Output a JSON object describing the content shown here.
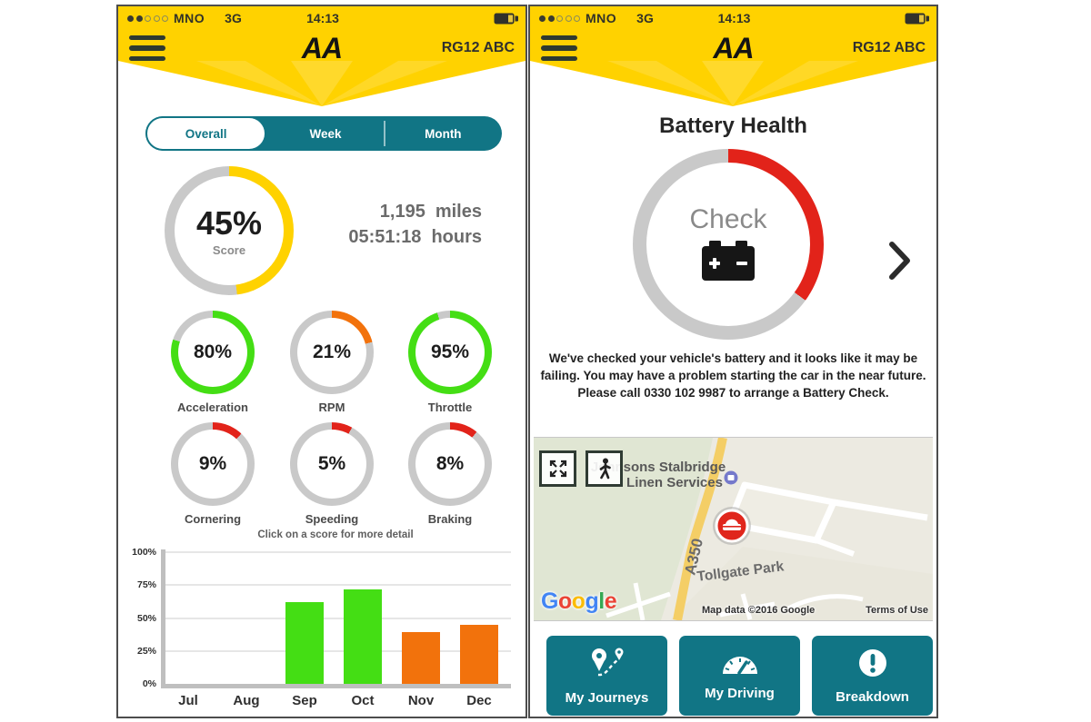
{
  "colors": {
    "yellow": "#FFD200",
    "teal": "#117585",
    "green": "#44DE14",
    "orange": "#F2720C",
    "red": "#E2231A",
    "ring_gray": "#C9C9C9"
  },
  "status_bar": {
    "signal_dots_filled": 2,
    "signal_dots_total": 5,
    "carrier": "MNO",
    "network": "3G",
    "time": "14:13"
  },
  "header": {
    "logo": "AA",
    "plate": "RG12 ABC"
  },
  "left_phone": {
    "tabs": [
      {
        "label": "Overall",
        "active": true
      },
      {
        "label": "Week",
        "active": false
      },
      {
        "label": "Month",
        "active": false
      }
    ],
    "score_gauge": {
      "value": "45%",
      "label": "Score",
      "arc_pct": 48,
      "color_key": "yellow"
    },
    "stats": {
      "miles_value": "1,195",
      "miles_unit": "miles",
      "hours_value": "05:51:18",
      "hours_unit": "hours"
    },
    "gauges": [
      {
        "value": "80%",
        "label": "Acceleration",
        "arc_pct": 80,
        "color_key": "green"
      },
      {
        "value": "21%",
        "label": "RPM",
        "arc_pct": 21,
        "color_key": "orange"
      },
      {
        "value": "95%",
        "label": "Throttle",
        "arc_pct": 95,
        "color_key": "green"
      },
      {
        "value": "9%",
        "label": "Cornering",
        "arc_pct": 12,
        "color_key": "red"
      },
      {
        "value": "5%",
        "label": "Speeding",
        "arc_pct": 8,
        "color_key": "red"
      },
      {
        "value": "8%",
        "label": "Braking",
        "arc_pct": 11,
        "color_key": "red"
      }
    ],
    "chart_data": {
      "type": "bar",
      "note": "Click on a score for more detail",
      "categories": [
        "Jul",
        "Aug",
        "Sep",
        "Oct",
        "Nov",
        "Dec"
      ],
      "values": [
        0,
        0,
        62,
        72,
        39,
        45
      ],
      "bar_colors": [
        null,
        null,
        "green",
        "green",
        "orange",
        "orange"
      ],
      "y_ticks": [
        "0%",
        "25%",
        "50%",
        "75%",
        "100%"
      ],
      "ylim": [
        0,
        100
      ],
      "grid": true
    }
  },
  "right_phone": {
    "title": "Battery Health",
    "battery_gauge": {
      "label": "Check",
      "arc_pct": 35,
      "color_key": "red"
    },
    "message": "We've checked your vehicle's battery and it looks like it may be failing. You may have a problem starting the car in the near future. Please call 0330 102 9987 to arrange a Battery Check.",
    "map": {
      "poi_line1": "Johnsons Stalbridge",
      "poi_line2": "Linen Services",
      "road_label": "A350",
      "area_label": "Tollgate Park",
      "logo_letters": [
        "G",
        "o",
        "o",
        "g",
        "l",
        "e"
      ],
      "logo_colors": [
        "#4285F4",
        "#EA4335",
        "#FBBC05",
        "#4285F4",
        "#34A853",
        "#EA4335"
      ],
      "attribution": "Map data ©2016 Google",
      "terms": "Terms of Use"
    },
    "buttons": [
      {
        "label": "My Journeys"
      },
      {
        "label": "My Driving"
      },
      {
        "label": "Breakdown"
      }
    ]
  }
}
